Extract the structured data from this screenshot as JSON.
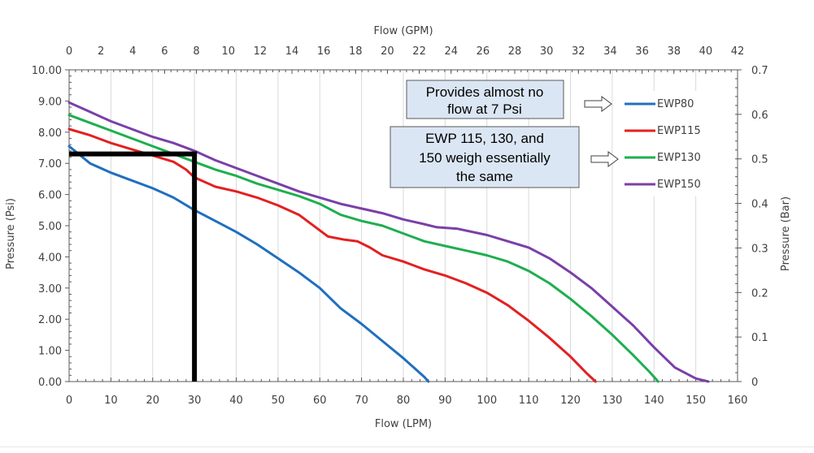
{
  "chart_data": {
    "type": "line",
    "title": "",
    "xlabel_bottom": "Flow (LPM)",
    "xlabel_top": "Flow (GPM)",
    "ylabel_left": "Pressure (Psi)",
    "ylabel_right": "Pressure (Bar)",
    "xlim": [
      0,
      160
    ],
    "ylim": [
      0,
      10
    ],
    "x2lim": [
      0,
      42
    ],
    "y2lim": [
      0,
      0.7
    ],
    "x_ticks": [
      "0",
      "10",
      "20",
      "30",
      "40",
      "50",
      "60",
      "70",
      "80",
      "90",
      "100",
      "110",
      "120",
      "130",
      "140",
      "150",
      "160"
    ],
    "x2_ticks": [
      "0",
      "2",
      "4",
      "6",
      "8",
      "10",
      "12",
      "14",
      "16",
      "18",
      "20",
      "22",
      "24",
      "26",
      "28",
      "30",
      "32",
      "34",
      "36",
      "38",
      "40",
      "42"
    ],
    "y_ticks": [
      "0.00",
      "1.00",
      "2.00",
      "3.00",
      "4.00",
      "5.00",
      "6.00",
      "7.00",
      "8.00",
      "9.00",
      "10.00"
    ],
    "y2_ticks": [
      "0",
      "0.1",
      "0.2",
      "0.3",
      "0.4",
      "0.5",
      "0.6",
      "0.7"
    ],
    "grid": "vertical",
    "legend_position": "top-right",
    "series": [
      {
        "name": "EWP80",
        "color": "#1f6fbf",
        "points": [
          [
            0,
            7.55
          ],
          [
            5,
            7.0
          ],
          [
            10,
            6.7
          ],
          [
            15,
            6.45
          ],
          [
            20,
            6.2
          ],
          [
            25,
            5.9
          ],
          [
            30,
            5.5
          ],
          [
            35,
            5.15
          ],
          [
            40,
            4.8
          ],
          [
            45,
            4.4
          ],
          [
            50,
            3.95
          ],
          [
            55,
            3.5
          ],
          [
            60,
            3.0
          ],
          [
            65,
            2.35
          ],
          [
            70,
            1.85
          ],
          [
            75,
            1.3
          ],
          [
            80,
            0.75
          ],
          [
            85,
            0.15
          ],
          [
            86,
            0.0
          ]
        ]
      },
      {
        "name": "EWP115",
        "color": "#e32020",
        "points": [
          [
            0,
            8.1
          ],
          [
            5,
            7.9
          ],
          [
            10,
            7.65
          ],
          [
            15,
            7.45
          ],
          [
            20,
            7.25
          ],
          [
            25,
            7.05
          ],
          [
            28,
            6.8
          ],
          [
            30,
            6.55
          ],
          [
            35,
            6.25
          ],
          [
            40,
            6.1
          ],
          [
            45,
            5.9
          ],
          [
            50,
            5.65
          ],
          [
            55,
            5.35
          ],
          [
            58,
            5.05
          ],
          [
            62,
            4.65
          ],
          [
            66,
            4.55
          ],
          [
            69,
            4.5
          ],
          [
            72,
            4.3
          ],
          [
            75,
            4.05
          ],
          [
            80,
            3.85
          ],
          [
            85,
            3.6
          ],
          [
            90,
            3.4
          ],
          [
            95,
            3.15
          ],
          [
            100,
            2.85
          ],
          [
            105,
            2.45
          ],
          [
            110,
            1.95
          ],
          [
            115,
            1.4
          ],
          [
            120,
            0.8
          ],
          [
            124,
            0.25
          ],
          [
            126,
            0.0
          ]
        ]
      },
      {
        "name": "EWP130",
        "color": "#1fae4f",
        "points": [
          [
            0,
            8.55
          ],
          [
            5,
            8.3
          ],
          [
            10,
            8.05
          ],
          [
            15,
            7.8
          ],
          [
            20,
            7.55
          ],
          [
            25,
            7.3
          ],
          [
            30,
            7.05
          ],
          [
            35,
            6.8
          ],
          [
            40,
            6.6
          ],
          [
            45,
            6.35
          ],
          [
            50,
            6.15
          ],
          [
            55,
            5.95
          ],
          [
            60,
            5.7
          ],
          [
            65,
            5.35
          ],
          [
            70,
            5.15
          ],
          [
            75,
            5.0
          ],
          [
            80,
            4.75
          ],
          [
            85,
            4.5
          ],
          [
            90,
            4.35
          ],
          [
            95,
            4.2
          ],
          [
            100,
            4.05
          ],
          [
            105,
            3.85
          ],
          [
            110,
            3.55
          ],
          [
            115,
            3.15
          ],
          [
            120,
            2.65
          ],
          [
            125,
            2.1
          ],
          [
            130,
            1.5
          ],
          [
            135,
            0.85
          ],
          [
            139,
            0.3
          ],
          [
            141,
            0.0
          ]
        ]
      },
      {
        "name": "EWP150",
        "color": "#7a3fa8",
        "points": [
          [
            0,
            8.95
          ],
          [
            5,
            8.65
          ],
          [
            10,
            8.35
          ],
          [
            15,
            8.1
          ],
          [
            20,
            7.85
          ],
          [
            25,
            7.65
          ],
          [
            30,
            7.4
          ],
          [
            35,
            7.1
          ],
          [
            40,
            6.85
          ],
          [
            45,
            6.6
          ],
          [
            50,
            6.35
          ],
          [
            55,
            6.1
          ],
          [
            60,
            5.9
          ],
          [
            65,
            5.7
          ],
          [
            70,
            5.55
          ],
          [
            75,
            5.4
          ],
          [
            80,
            5.2
          ],
          [
            85,
            5.05
          ],
          [
            88,
            4.95
          ],
          [
            93,
            4.9
          ],
          [
            100,
            4.7
          ],
          [
            105,
            4.5
          ],
          [
            110,
            4.3
          ],
          [
            115,
            3.95
          ],
          [
            120,
            3.5
          ],
          [
            125,
            3.0
          ],
          [
            130,
            2.4
          ],
          [
            135,
            1.8
          ],
          [
            140,
            1.1
          ],
          [
            145,
            0.45
          ],
          [
            150,
            0.1
          ],
          [
            153,
            0.0
          ]
        ]
      }
    ],
    "reference_lines": [
      {
        "axis": "y",
        "value": 7.3,
        "from": 0,
        "to": 30
      },
      {
        "axis": "x",
        "value": 30,
        "from": 0,
        "to": 7.3
      }
    ],
    "annotations": [
      {
        "text_lines": [
          "Provides almost no",
          "flow at 7 Psi"
        ]
      },
      {
        "text_lines": [
          "EWP 115, 130, and",
          "150 weigh essentially",
          "the same"
        ]
      }
    ]
  }
}
